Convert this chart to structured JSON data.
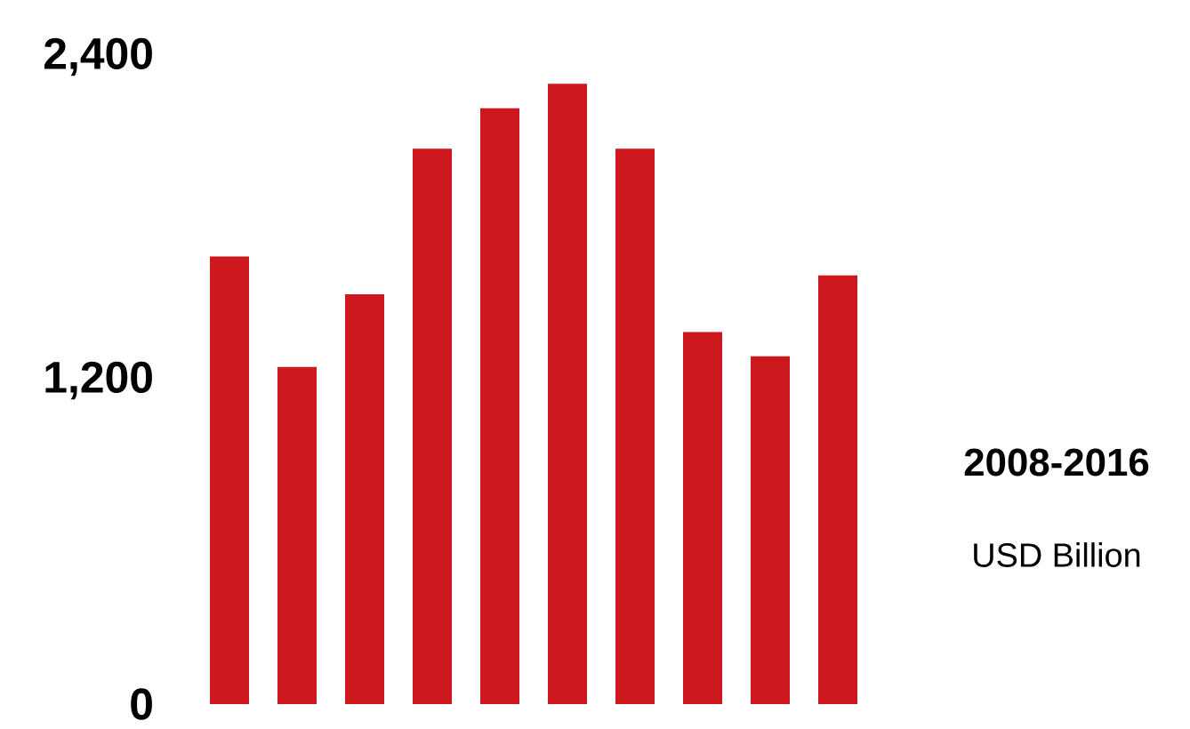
{
  "chart_data": {
    "type": "bar",
    "categories": [
      null,
      null,
      null,
      null,
      null,
      null,
      null,
      null,
      null,
      null
    ],
    "values": [
      1660,
      1250,
      1520,
      2060,
      2210,
      2300,
      2060,
      1380,
      1290,
      1590
    ],
    "color": "#cd181e",
    "ylim": [
      0,
      2400
    ],
    "yticks": [
      {
        "value": 0,
        "label": "0"
      },
      {
        "value": 1200,
        "label": "1,200"
      },
      {
        "value": 2400,
        "label": "2,400"
      }
    ],
    "tick_labels": "y",
    "grid": false,
    "annotations": [
      "2008-2016",
      "USD Billion"
    ]
  }
}
